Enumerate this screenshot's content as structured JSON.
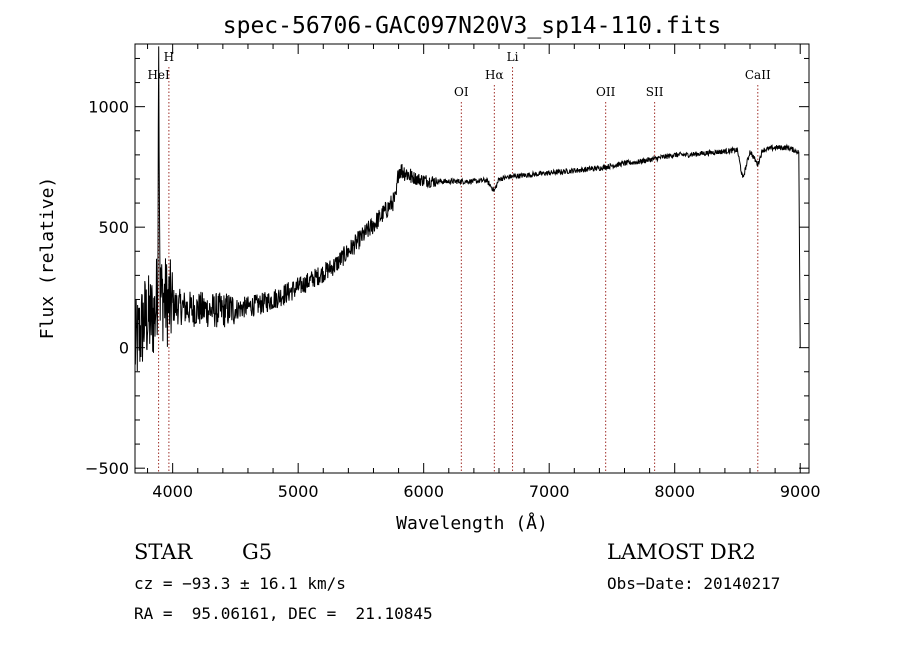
{
  "chart_data": {
    "type": "line",
    "title": "spec-56706-GAC097N20V3_sp14-110.fits",
    "xlabel": "Wavelength (Å)",
    "ylabel": "Flux (relative)",
    "xlim": [
      3700,
      9070
    ],
    "ylim": [
      -520,
      1260
    ],
    "xticks": [
      {
        "value": 4000,
        "label": "4000"
      },
      {
        "value": 5000,
        "label": "5000"
      },
      {
        "value": 6000,
        "label": "6000"
      },
      {
        "value": 7000,
        "label": "7000"
      },
      {
        "value": 8000,
        "label": "8000"
      },
      {
        "value": 9000,
        "label": "9000"
      }
    ],
    "yticks": [
      {
        "value": -500,
        "label": "−500"
      },
      {
        "value": 0,
        "label": "0"
      },
      {
        "value": 500,
        "label": "500"
      },
      {
        "value": 1000,
        "label": "1000"
      }
    ],
    "grid": false,
    "line_color": "#000000",
    "marker_color": "#a0302a",
    "lines": [
      {
        "name": "HeI",
        "wavelength": 3888,
        "row": 2
      },
      {
        "name": "H",
        "wavelength": 3970,
        "row": 1
      },
      {
        "name": "OI",
        "wavelength": 6300,
        "row": 3
      },
      {
        "name": "Hα",
        "wavelength": 6563,
        "row": 2
      },
      {
        "name": "Li",
        "wavelength": 6708,
        "row": 1
      },
      {
        "name": "OII",
        "wavelength": 7450,
        "row": 3
      },
      {
        "name": "SII",
        "wavelength": 7840,
        "row": 3
      },
      {
        "name": "CaII",
        "wavelength": 8662,
        "row": 2
      }
    ],
    "series": [
      {
        "x": [
          3700,
          3740,
          3780,
          3820,
          3860,
          3880,
          3889,
          3900,
          3940,
          3970,
          4000,
          4050,
          4100,
          4150,
          4200,
          4300,
          4400,
          4500,
          4600,
          4700,
          4800,
          4900,
          5000,
          5100,
          5200,
          5300,
          5400,
          5500,
          5600,
          5700,
          5780,
          5800,
          5850,
          5900,
          5950,
          6000,
          6100,
          6200,
          6300,
          6400,
          6500,
          6563,
          6600,
          6700,
          6800,
          6900,
          7000,
          7100,
          7200,
          7300,
          7400,
          7500,
          7600,
          7700,
          7800,
          7900,
          8000,
          8100,
          8200,
          8300,
          8400,
          8500,
          8542,
          8600,
          8662,
          8700,
          8800,
          8900,
          8950,
          8990,
          9000
        ],
        "y": [
          0,
          60,
          120,
          120,
          140,
          250,
          1150,
          220,
          200,
          180,
          175,
          170,
          165,
          160,
          160,
          155,
          155,
          160,
          170,
          180,
          200,
          225,
          250,
          280,
          310,
          345,
          400,
          455,
          510,
          570,
          620,
          740,
          730,
          710,
          700,
          695,
          690,
          690,
          690,
          690,
          695,
          650,
          700,
          710,
          715,
          720,
          725,
          730,
          735,
          740,
          745,
          755,
          765,
          770,
          780,
          790,
          800,
          800,
          805,
          810,
          815,
          820,
          700,
          815,
          760,
          820,
          830,
          830,
          820,
          810,
          0
        ]
      }
    ]
  },
  "info": {
    "object_class": "STAR",
    "subclass": "G5",
    "survey": "LAMOST DR2",
    "redshift": "cz = −93.3 ± 16.1 km/s",
    "obs_date": "Obs−Date: 20140217",
    "coords": "RA =  95.06161, DEC =  21.10845"
  }
}
